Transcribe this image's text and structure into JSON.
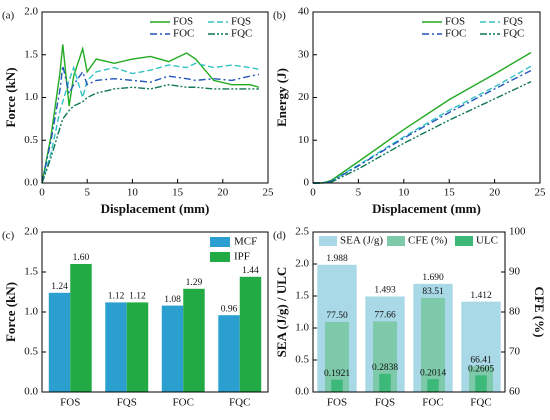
{
  "chart_data": [
    {
      "type": "line",
      "panel_label": "(a)",
      "x_label": "Displacement (mm)",
      "y_label": "Force (kN)",
      "x": [
        0,
        1,
        2,
        2.3,
        3,
        3.5,
        4.5,
        5,
        6,
        8,
        10,
        12,
        14,
        16,
        17,
        19,
        21,
        23,
        24
      ],
      "xlim": [
        0,
        25
      ],
      "xticks": [
        0,
        5,
        10,
        15,
        20,
        25
      ],
      "ylim": [
        0,
        2
      ],
      "yticks": [
        {
          "value": 0,
          "label": "0.0"
        },
        0.5,
        {
          "value": 1,
          "label": "1.0"
        },
        1.5,
        {
          "value": 2,
          "label": "2.0"
        }
      ],
      "series": [
        {
          "name": "FOS",
          "color": "#22aa22",
          "line_style": "solid",
          "values": [
            0,
            0.55,
            1.3,
            1.62,
            0.9,
            1.25,
            1.57,
            1.3,
            1.45,
            1.4,
            1.45,
            1.48,
            1.42,
            1.52,
            1.45,
            1.2,
            1.15,
            1.15,
            1.12
          ]
        },
        {
          "name": "FQS",
          "color": "#33c4c4",
          "line_style": "dashed",
          "values": [
            0,
            0.35,
            0.85,
            0.95,
            1.2,
            1.35,
            1.0,
            1.2,
            1.3,
            1.35,
            1.28,
            1.32,
            1.38,
            1.35,
            1.4,
            1.35,
            1.38,
            1.35,
            1.33
          ]
        },
        {
          "name": "FOC",
          "color": "#2255bb",
          "line_style": "dashdot",
          "values": [
            0,
            0.5,
            1.1,
            1.37,
            1.05,
            1.15,
            1.3,
            1.15,
            1.2,
            1.22,
            1.2,
            1.18,
            1.25,
            1.22,
            1.2,
            1.22,
            1.2,
            1.25,
            1.27
          ]
        },
        {
          "name": "FQC",
          "color": "#117755",
          "line_style": "dashdotdot",
          "values": [
            0,
            0.3,
            0.65,
            0.75,
            0.85,
            0.9,
            0.95,
            1.0,
            1.05,
            1.1,
            1.12,
            1.1,
            1.15,
            1.12,
            1.12,
            1.1,
            1.1,
            1.1,
            1.1
          ]
        }
      ]
    },
    {
      "type": "line",
      "panel_label": "(b)",
      "x_label": "Displacement (mm)",
      "y_label": "Energy (J)",
      "x": [
        0,
        1,
        2,
        5,
        10,
        15,
        20,
        24
      ],
      "xlim": [
        0,
        25
      ],
      "xticks": [
        0,
        5,
        10,
        15,
        20,
        25
      ],
      "ylim": [
        0,
        40
      ],
      "yticks": [
        0,
        10,
        20,
        30,
        40
      ],
      "series": [
        {
          "name": "FOS",
          "color": "#22aa22",
          "line_style": "solid",
          "values": [
            0,
            0,
            0.6,
            5,
            12.5,
            19.5,
            25.5,
            30.5
          ]
        },
        {
          "name": "FQS",
          "color": "#33c4c4",
          "line_style": "dashed",
          "values": [
            0,
            0,
            0.4,
            4.2,
            10.8,
            17,
            22.5,
            27.3
          ]
        },
        {
          "name": "FOC",
          "color": "#2255bb",
          "line_style": "dashdot",
          "values": [
            0,
            0,
            0.4,
            4,
            10.5,
            16.5,
            22,
            26.3
          ]
        },
        {
          "name": "FQC",
          "color": "#117755",
          "line_style": "dashdotdot",
          "values": [
            0,
            0,
            0.2,
            3.3,
            9.3,
            14.7,
            19.7,
            23.7
          ]
        }
      ]
    },
    {
      "type": "bar",
      "panel_label": "(c)",
      "y_label": "Force (kN)",
      "categories": [
        "FOS",
        "FQS",
        "FOC",
        "FQC"
      ],
      "ylim": [
        0,
        2
      ],
      "yticks": [
        {
          "value": 0,
          "label": "0.0"
        },
        0.5,
        {
          "value": 1,
          "label": "1.0"
        },
        1.5,
        {
          "value": 2,
          "label": "2.0"
        }
      ],
      "series": [
        {
          "name": "MCF",
          "color": "#2a9fd0",
          "values": [
            1.24,
            1.12,
            1.08,
            0.96
          ],
          "value_labels": [
            "1.24",
            "1.12",
            "1.08",
            "0.96"
          ]
        },
        {
          "name": "IPF",
          "color": "#22aa44",
          "values": [
            1.6,
            1.12,
            1.29,
            1.44
          ],
          "value_labels": [
            "1.60",
            "1.12",
            "1.29",
            "1.44"
          ]
        }
      ]
    },
    {
      "type": "overlay_bar",
      "panel_label": "(d)",
      "y_label": "SEA (J/g) / ULC",
      "y2_label": "CFE (%)",
      "categories": [
        "FOS",
        "FQS",
        "FOC",
        "FQC"
      ],
      "ylim": [
        0,
        2.5
      ],
      "yticks": [
        {
          "value": 0,
          "label": "0.0"
        },
        0.5,
        {
          "value": 1,
          "label": "1.0"
        },
        1.5,
        {
          "value": 2,
          "label": "2.0"
        },
        2.5
      ],
      "y2lim": [
        60,
        100
      ],
      "y2ticks": [
        60,
        70,
        80,
        90,
        100
      ],
      "series": [
        {
          "name": "SEA (J/g)",
          "color": "#a9d8e6",
          "values": [
            1.988,
            1.493,
            1.69,
            1.412
          ],
          "value_labels": [
            "1.988",
            "1.493",
            "1.690",
            "1.412"
          ]
        },
        {
          "name": "CFE (%)",
          "color": "#7ec9aa",
          "axis": "y2",
          "values": [
            77.5,
            77.66,
            83.51,
            66.41
          ],
          "value_labels": [
            "77.50",
            "77.66",
            "83.51",
            "66.41"
          ]
        },
        {
          "name": "ULC",
          "color": "#3cb878",
          "values": [
            0.1921,
            0.2838,
            0.2014,
            0.2605
          ],
          "value_labels": [
            "0.1921",
            "0.2838",
            "0.2014",
            "0.2605"
          ]
        }
      ]
    }
  ]
}
